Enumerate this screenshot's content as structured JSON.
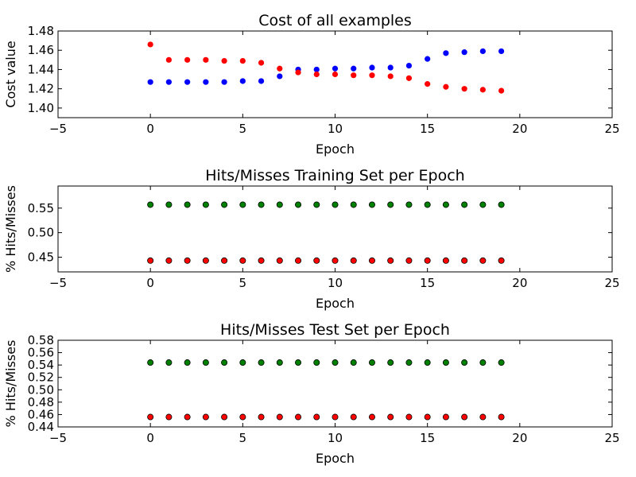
{
  "chart_data": [
    {
      "type": "scatter",
      "title": "Cost of all examples",
      "xlabel": "Epoch",
      "ylabel": "Cost value",
      "xlim": [
        -5,
        25
      ],
      "ylim": [
        1.39,
        1.48
      ],
      "xticks": [
        "−5",
        "0",
        "5",
        "10",
        "15",
        "20",
        "25"
      ],
      "yticks": [
        "1.40",
        "1.42",
        "1.44",
        "1.46",
        "1.48"
      ],
      "grid": false,
      "series": [
        {
          "color": "#0000ff",
          "x": [
            0,
            1,
            2,
            3,
            4,
            5,
            6,
            7,
            8,
            9,
            10,
            11,
            12,
            13,
            14,
            15,
            16,
            17,
            18,
            19
          ],
          "y": [
            1.427,
            1.427,
            1.427,
            1.427,
            1.427,
            1.428,
            1.428,
            1.433,
            1.44,
            1.44,
            1.441,
            1.441,
            1.442,
            1.442,
            1.444,
            1.451,
            1.457,
            1.458,
            1.459,
            1.459
          ]
        },
        {
          "color": "#ff0000",
          "x": [
            0,
            1,
            2,
            3,
            4,
            5,
            6,
            7,
            8,
            9,
            10,
            11,
            12,
            13,
            14,
            15,
            16,
            17,
            18,
            19
          ],
          "y": [
            1.466,
            1.45,
            1.45,
            1.45,
            1.449,
            1.449,
            1.447,
            1.441,
            1.437,
            1.435,
            1.435,
            1.434,
            1.434,
            1.433,
            1.431,
            1.425,
            1.422,
            1.42,
            1.419,
            1.418
          ]
        }
      ]
    },
    {
      "type": "scatter",
      "title": "Hits/Misses Training Set per Epoch",
      "xlabel": "Epoch",
      "ylabel": "% Hits/Misses",
      "xlim": [
        -5,
        25
      ],
      "ylim": [
        0.42,
        0.595
      ],
      "xticks": [
        "−5",
        "0",
        "5",
        "10",
        "15",
        "20",
        "25"
      ],
      "yticks": [
        "0.45",
        "0.50",
        "0.55"
      ],
      "grid": false,
      "series": [
        {
          "color": "#008000",
          "x": [
            0,
            1,
            2,
            3,
            4,
            5,
            6,
            7,
            8,
            9,
            10,
            11,
            12,
            13,
            14,
            15,
            16,
            17,
            18,
            19
          ],
          "y": [
            0.557,
            0.557,
            0.557,
            0.557,
            0.557,
            0.557,
            0.557,
            0.557,
            0.557,
            0.557,
            0.557,
            0.557,
            0.557,
            0.557,
            0.557,
            0.557,
            0.557,
            0.557,
            0.557,
            0.557
          ]
        },
        {
          "color": "#ff0000",
          "x": [
            0,
            1,
            2,
            3,
            4,
            5,
            6,
            7,
            8,
            9,
            10,
            11,
            12,
            13,
            14,
            15,
            16,
            17,
            18,
            19
          ],
          "y": [
            0.443,
            0.443,
            0.443,
            0.443,
            0.443,
            0.443,
            0.443,
            0.443,
            0.443,
            0.443,
            0.443,
            0.443,
            0.443,
            0.443,
            0.443,
            0.443,
            0.443,
            0.443,
            0.443,
            0.443
          ]
        }
      ]
    },
    {
      "type": "scatter",
      "title": "Hits/Misses Test Set per Epoch",
      "xlabel": "Epoch",
      "ylabel": "% Hits/Misses",
      "xlim": [
        -5,
        25
      ],
      "ylim": [
        0.44,
        0.58
      ],
      "xticks": [
        "−5",
        "0",
        "5",
        "10",
        "15",
        "20",
        "25"
      ],
      "yticks": [
        "0.44",
        "0.46",
        "0.48",
        "0.50",
        "0.52",
        "0.54",
        "0.56",
        "0.58"
      ],
      "grid": false,
      "series": [
        {
          "color": "#008000",
          "x": [
            0,
            1,
            2,
            3,
            4,
            5,
            6,
            7,
            8,
            9,
            10,
            11,
            12,
            13,
            14,
            15,
            16,
            17,
            18,
            19
          ],
          "y": [
            0.544,
            0.544,
            0.544,
            0.544,
            0.544,
            0.544,
            0.544,
            0.544,
            0.544,
            0.544,
            0.544,
            0.544,
            0.544,
            0.544,
            0.544,
            0.544,
            0.544,
            0.544,
            0.544,
            0.544
          ]
        },
        {
          "color": "#ff0000",
          "x": [
            0,
            1,
            2,
            3,
            4,
            5,
            6,
            7,
            8,
            9,
            10,
            11,
            12,
            13,
            14,
            15,
            16,
            17,
            18,
            19
          ],
          "y": [
            0.456,
            0.456,
            0.456,
            0.456,
            0.456,
            0.456,
            0.456,
            0.456,
            0.456,
            0.456,
            0.456,
            0.456,
            0.456,
            0.456,
            0.456,
            0.456,
            0.456,
            0.456,
            0.456,
            0.456
          ]
        }
      ]
    }
  ]
}
